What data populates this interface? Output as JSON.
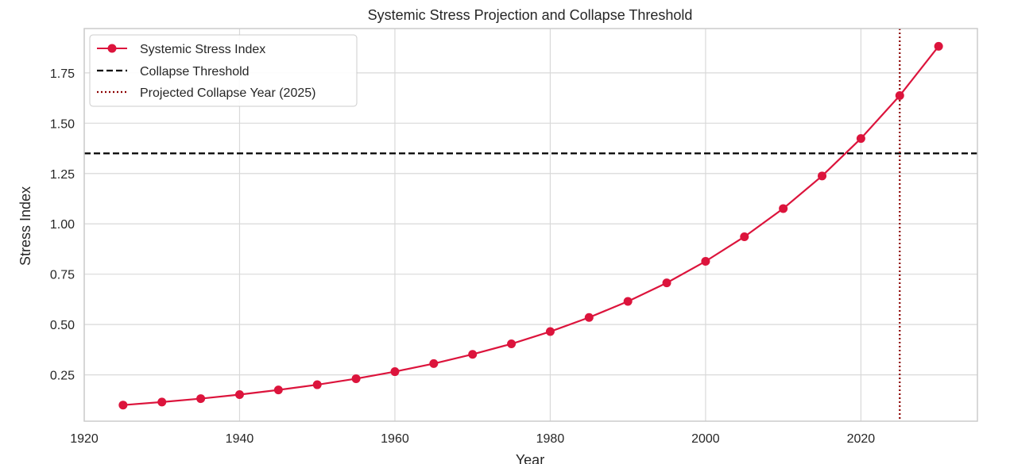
{
  "chart_data": {
    "type": "line",
    "title": "Systemic Stress Projection and Collapse Threshold",
    "xlabel": "Year",
    "ylabel": "Stress Index",
    "xlim": [
      1920,
      2035
    ],
    "ylim": [
      0.02,
      1.97
    ],
    "xticks": [
      1920,
      1940,
      1960,
      1980,
      2000,
      2020
    ],
    "yticks": [
      0.25,
      0.5,
      0.75,
      1.0,
      1.25,
      1.5,
      1.75
    ],
    "xtick_labels": [
      "1920",
      "1940",
      "1960",
      "1980",
      "2000",
      "2020"
    ],
    "ytick_labels": [
      "0.25",
      "0.50",
      "0.75",
      "1.00",
      "1.25",
      "1.50",
      "1.75"
    ],
    "grid": true,
    "legend_position": "top-left",
    "series": [
      {
        "name": "Systemic Stress Index",
        "color": "#dc143c",
        "x": [
          1925,
          1930,
          1935,
          1940,
          1945,
          1950,
          1955,
          1960,
          1965,
          1970,
          1975,
          1980,
          1985,
          1990,
          1995,
          2000,
          2005,
          2010,
          2015,
          2020,
          2025,
          2030
        ],
        "y": [
          0.1,
          0.115,
          0.132,
          0.152,
          0.175,
          0.201,
          0.231,
          0.266,
          0.306,
          0.352,
          0.404,
          0.465,
          0.535,
          0.615,
          0.707,
          0.814,
          0.936,
          1.076,
          1.238,
          1.424,
          1.637,
          1.882
        ]
      }
    ],
    "reference_lines": [
      {
        "name": "Collapse Threshold",
        "orientation": "horizontal",
        "value": 1.35,
        "style": "dashed",
        "color": "#000000"
      },
      {
        "name": "Projected Collapse Year (2025)",
        "orientation": "vertical",
        "value": 2025,
        "style": "dotted",
        "color": "#8b0000"
      }
    ]
  }
}
